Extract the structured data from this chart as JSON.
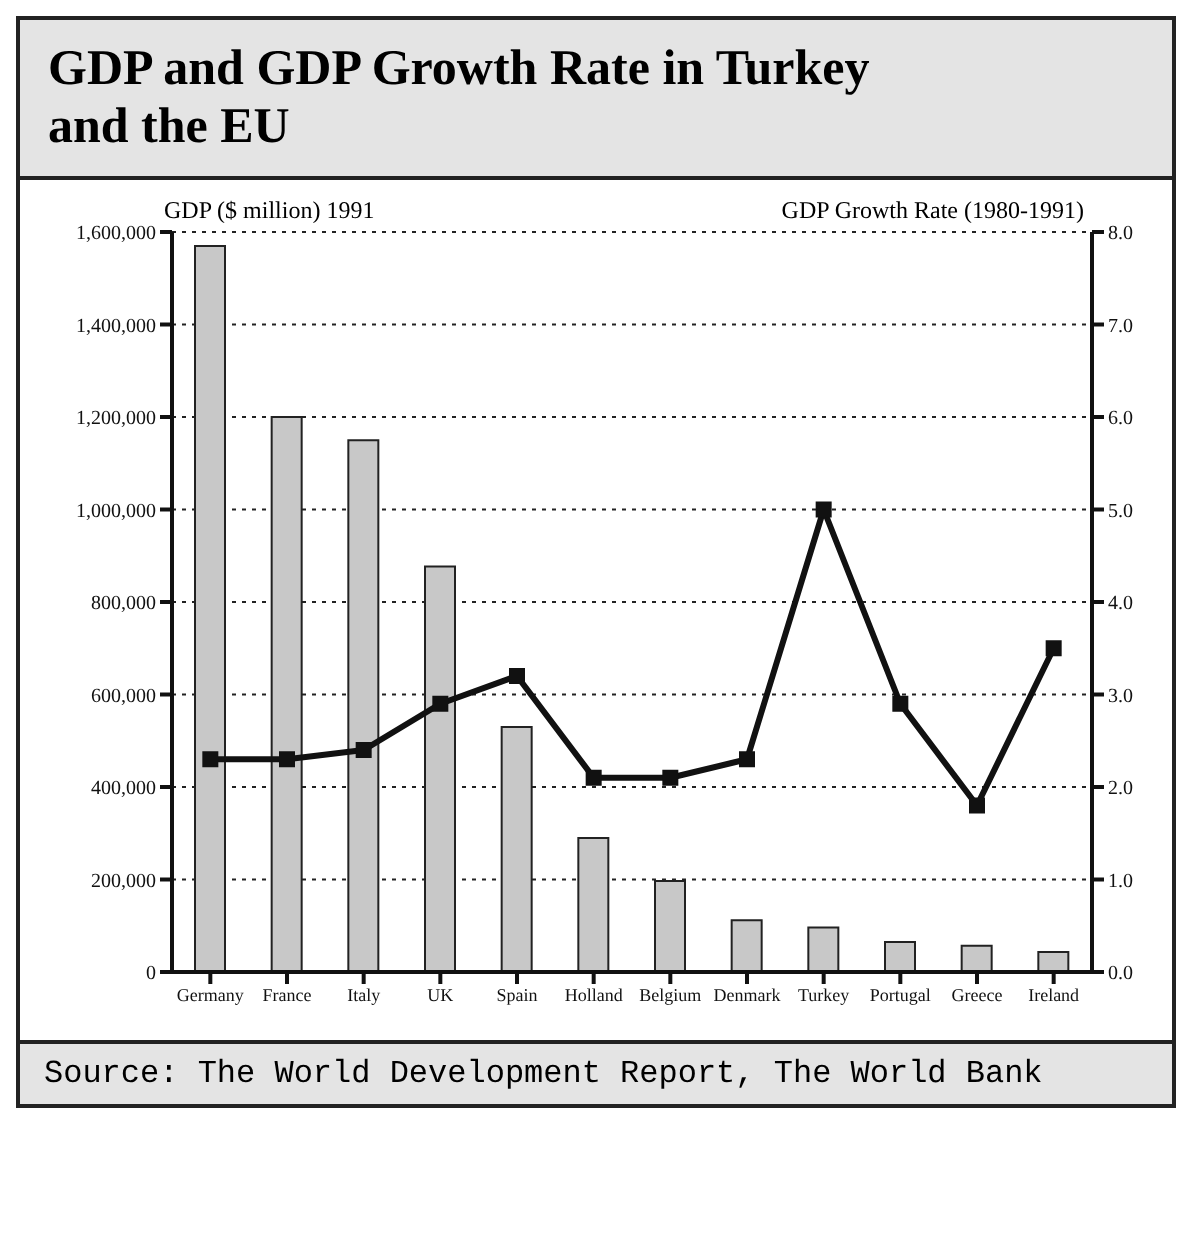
{
  "chart_data": {
    "type": "bar",
    "title": "GDP and GDP Growth Rate in Turkey and the EU",
    "ylabel": "GDP ($ million) 1991",
    "y2label": "GDP Growth Rate (1980-1991)",
    "categories": [
      "Germany",
      "France",
      "Italy",
      "UK",
      "Spain",
      "Holland",
      "Belgium",
      "Denmark",
      "Turkey",
      "Portugal",
      "Greece",
      "Ireland"
    ],
    "series": [
      {
        "color": "#c8c8c8",
        "values": [
          1570000,
          1200000,
          1150000,
          877000,
          530000,
          290000,
          197000,
          112000,
          96000,
          65000,
          57000,
          43000
        ]
      },
      {
        "type": "line",
        "axis": "y2",
        "color": "#111111",
        "marker": "square",
        "values": [
          2.3,
          2.3,
          2.4,
          2.9,
          3.2,
          2.1,
          2.1,
          2.3,
          5.0,
          2.9,
          1.8,
          3.5
        ]
      }
    ],
    "ylim": [
      0,
      1600000
    ],
    "yticks": [
      0,
      {
        "value": 200000,
        "label": "200,000"
      },
      {
        "value": 400000,
        "label": "400,000"
      },
      {
        "value": 600000,
        "label": "600,000"
      },
      {
        "value": 800000,
        "label": "800,000"
      },
      {
        "value": 1000000,
        "label": "1,000,000"
      },
      {
        "value": 1200000,
        "label": "1,200,000"
      },
      {
        "value": 1400000,
        "label": "1,400,000"
      },
      {
        "value": 1600000,
        "label": "1,600,000"
      }
    ],
    "y2lim": [
      0,
      8
    ],
    "y2ticks": [
      {
        "value": 0,
        "label": "0.0"
      },
      {
        "value": 1,
        "label": "1.0"
      },
      {
        "value": 2,
        "label": "2.0"
      },
      {
        "value": 3,
        "label": "3.0"
      },
      {
        "value": 4,
        "label": "4.0"
      },
      {
        "value": 5,
        "label": "5.0"
      },
      {
        "value": 6,
        "label": "6.0"
      },
      {
        "value": 7,
        "label": "7.0"
      },
      {
        "value": 8,
        "label": "8.0"
      }
    ],
    "grid": "y",
    "line_style": "solid",
    "annotations": [
      "Source: The World Development Report, The World Bank"
    ]
  }
}
